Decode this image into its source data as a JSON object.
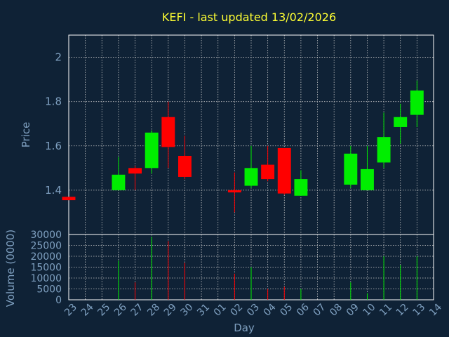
{
  "chart_data": {
    "type": "candlestick",
    "title": "KEFI - last updated 13/02/2026",
    "xlabel": "Day",
    "price_ylabel": "Price",
    "volume_ylabel": "Volume (0000)",
    "categories": [
      "23",
      "24",
      "25",
      "26",
      "27",
      "28",
      "29",
      "30",
      "31",
      "01",
      "02",
      "03",
      "04",
      "05",
      "06",
      "07",
      "08",
      "09",
      "10",
      "11",
      "12",
      "13",
      "14"
    ],
    "price_ylim": [
      1.2,
      2.1
    ],
    "price_ticks": [
      "1.4",
      "1.6",
      "1.8",
      "2"
    ],
    "volume_ylim": [
      0,
      30000
    ],
    "volume_ticks": [
      "0",
      "5000",
      "10000",
      "15000",
      "20000",
      "25000",
      "30000"
    ],
    "up_color": "#00ee00",
    "down_color": "#ff0000",
    "grid": true,
    "candles": [
      {
        "day": "23",
        "open": 1.37,
        "high": 1.37,
        "low": 1.355,
        "close": 1.355,
        "volume": 0
      },
      {
        "day": "26",
        "open": 1.4,
        "high": 1.55,
        "low": 1.4,
        "close": 1.47,
        "volume": 18000
      },
      {
        "day": "27",
        "open": 1.5,
        "high": 1.51,
        "low": 1.4,
        "close": 1.475,
        "volume": 8000
      },
      {
        "day": "28",
        "open": 1.5,
        "high": 1.67,
        "low": 1.475,
        "close": 1.66,
        "volume": 29000
      },
      {
        "day": "29",
        "open": 1.73,
        "high": 1.8,
        "low": 1.5,
        "close": 1.595,
        "volume": 27000
      },
      {
        "day": "30",
        "open": 1.555,
        "high": 1.645,
        "low": 1.45,
        "close": 1.46,
        "volume": 17000
      },
      {
        "day": "02",
        "open": 1.4,
        "high": 1.48,
        "low": 1.3,
        "close": 1.39,
        "volume": 12000
      },
      {
        "day": "03",
        "open": 1.42,
        "high": 1.6,
        "low": 1.41,
        "close": 1.5,
        "volume": 15000
      },
      {
        "day": "04",
        "open": 1.515,
        "high": 1.6,
        "low": 1.44,
        "close": 1.45,
        "volume": 5000
      },
      {
        "day": "05",
        "open": 1.59,
        "high": 1.59,
        "low": 1.38,
        "close": 1.385,
        "volume": 6000
      },
      {
        "day": "06",
        "open": 1.375,
        "high": 1.49,
        "low": 1.375,
        "close": 1.45,
        "volume": 5000
      },
      {
        "day": "09",
        "open": 1.425,
        "high": 1.6,
        "low": 1.41,
        "close": 1.565,
        "volume": 8000
      },
      {
        "day": "10",
        "open": 1.4,
        "high": 1.6,
        "low": 1.4,
        "close": 1.495,
        "volume": 3000
      },
      {
        "day": "11",
        "open": 1.525,
        "high": 1.75,
        "low": 1.5,
        "close": 1.64,
        "volume": 20000
      },
      {
        "day": "12",
        "open": 1.685,
        "high": 1.79,
        "low": 1.61,
        "close": 1.73,
        "volume": 16000
      },
      {
        "day": "13",
        "open": 1.74,
        "high": 1.895,
        "low": 1.685,
        "close": 1.85,
        "volume": 20000
      }
    ]
  }
}
